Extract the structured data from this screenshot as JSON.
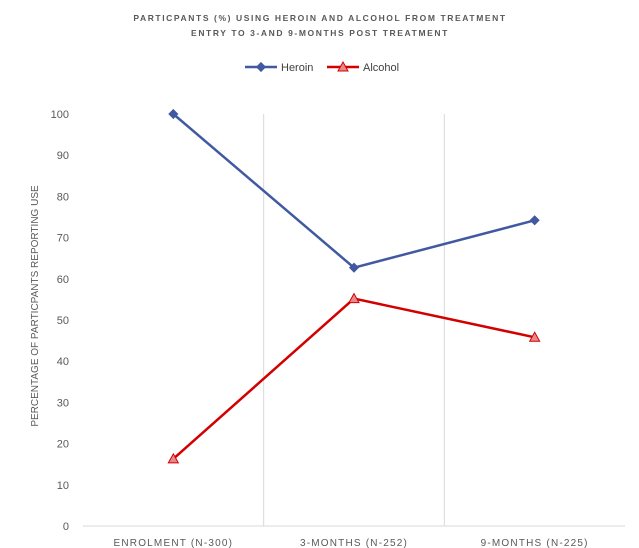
{
  "chart_data": {
    "type": "line",
    "title_lines": [
      "PARTICPANTS (%) USING HEROIN AND ALCOHOL  FROM TREATMENT",
      "ENTRY TO 3-AND 9-MONTHS POST TREATMENT"
    ],
    "xlabel": "",
    "ylabel": "PERCENTAGE OF PARTICPANTS REPORTING USE",
    "categories": [
      "ENROLMENT (N-300)",
      "3-MONTHS (N-252)",
      "9-MONTHS (N-225)"
    ],
    "ylim": [
      0,
      100
    ],
    "yticks": [
      0,
      10,
      20,
      30,
      40,
      50,
      60,
      70,
      80,
      90,
      100
    ],
    "grid": "vertical category dividers",
    "legend": "top-center",
    "series": [
      {
        "name": "Heroin",
        "values": [
          100,
          62.7,
          74.2
        ],
        "color": "#4159a0",
        "marker": "diamond"
      },
      {
        "name": "Alcohol",
        "values": [
          16.3,
          55.2,
          45.8
        ],
        "color": "#d40000",
        "marker": "triangle"
      }
    ]
  }
}
